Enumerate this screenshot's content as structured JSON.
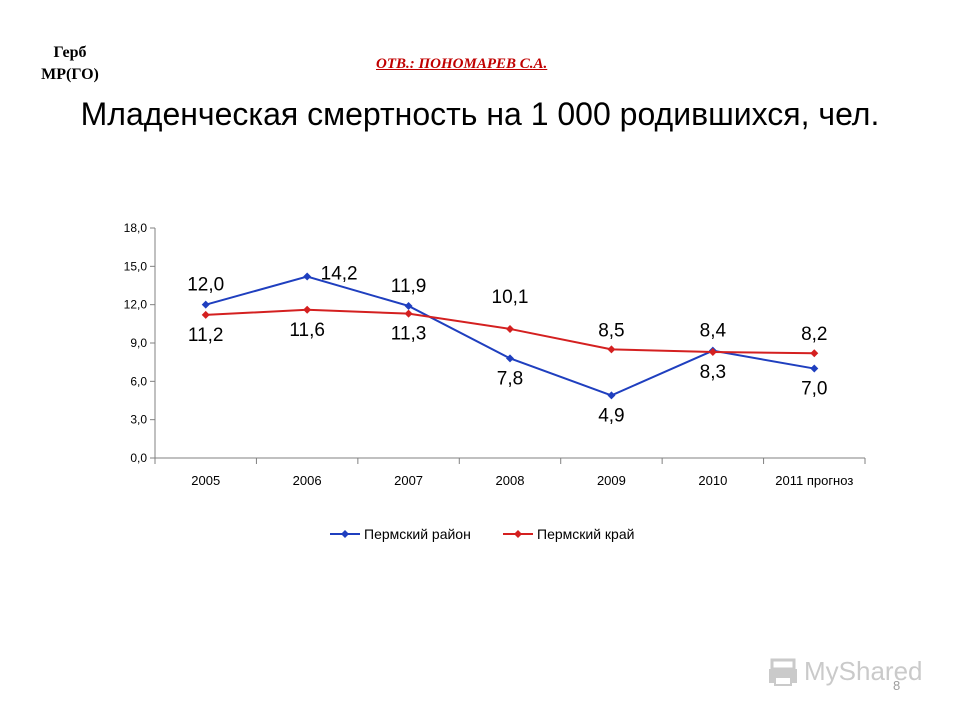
{
  "header": {
    "coat_of_arms": [
      "Герб",
      "МР(ГО)"
    ],
    "responsible": "ОТВ.: ПОНОМАРЕВ С.А.",
    "title": "Младенческая смертность на 1 000 родившихся, чел."
  },
  "footer": {
    "watermark": "MyShared",
    "page_number": "8"
  },
  "colors": {
    "series_blue": "#1f3fbf",
    "series_red": "#d42020",
    "responsible": "#c00000"
  },
  "chart_data": {
    "type": "line",
    "categories": [
      "2005",
      "2006",
      "2007",
      "2008",
      "2009",
      "2010",
      "2011 прогноз"
    ],
    "ylim": [
      0,
      18
    ],
    "yticks": [
      "0,0",
      "3,0",
      "6,0",
      "9,0",
      "12,0",
      "15,0",
      "18,0"
    ],
    "grid": false,
    "legend": "bottom",
    "series": [
      {
        "name": "Пермский район",
        "values": [
          12.0,
          14.2,
          11.9,
          7.8,
          4.9,
          8.4,
          7.0
        ],
        "labels": [
          "12,0",
          "14,2",
          "11,9",
          "7,8",
          "4,9",
          "8,4",
          "7,0"
        ]
      },
      {
        "name": "Пермский край",
        "values": [
          11.2,
          11.6,
          11.3,
          10.1,
          8.5,
          8.3,
          8.2
        ],
        "labels": [
          "11,2",
          "11,6",
          "11,3",
          "10,1",
          "8,5",
          "8,3",
          "8,2"
        ]
      }
    ]
  }
}
